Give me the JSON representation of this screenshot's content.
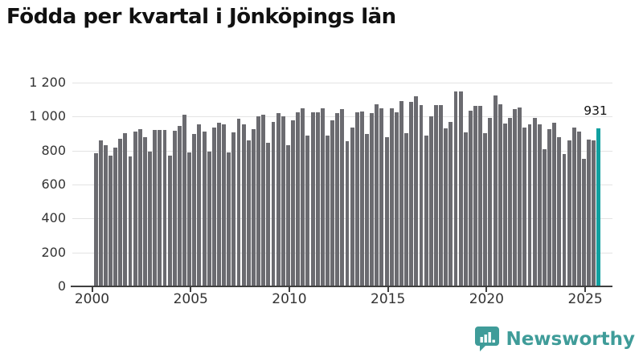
{
  "page": {
    "background": "#ffffff"
  },
  "header": {
    "title": "Födda per kvartal i Jönköpings län"
  },
  "branding": {
    "name": "Newsworthy",
    "color": "#3f9c99",
    "icon": "bar-chart-speech-bubble-icon"
  },
  "chart_data": {
    "type": "bar",
    "title": "Födda per kvartal i Jönköpings län",
    "xlabel": "",
    "ylabel": "",
    "ylim": [
      0,
      1200
    ],
    "grid": true,
    "legend": "none",
    "bar_color": "#6b6b70",
    "highlight_color": "#10a0a0",
    "highlight_index": 102,
    "annotation": {
      "text": "931",
      "target_index": 102
    },
    "y_ticks": {
      "values": [
        0,
        200,
        400,
        600,
        800,
        1000,
        1200
      ],
      "labels": [
        "0",
        "200",
        "400",
        "600",
        "800",
        "1 000",
        "1 200"
      ]
    },
    "x_ticks": {
      "labels": [
        "2000",
        "2005",
        "2010",
        "2015",
        "2020",
        "2025"
      ],
      "quarter_indices": [
        0,
        20,
        40,
        60,
        80,
        100
      ]
    },
    "categories": [
      "2000 Q1",
      "2000 Q2",
      "2000 Q3",
      "2000 Q4",
      "2001 Q1",
      "2001 Q2",
      "2001 Q3",
      "2001 Q4",
      "2002 Q1",
      "2002 Q2",
      "2002 Q3",
      "2002 Q4",
      "2003 Q1",
      "2003 Q2",
      "2003 Q3",
      "2003 Q4",
      "2004 Q1",
      "2004 Q2",
      "2004 Q3",
      "2004 Q4",
      "2005 Q1",
      "2005 Q2",
      "2005 Q3",
      "2005 Q4",
      "2006 Q1",
      "2006 Q2",
      "2006 Q3",
      "2006 Q4",
      "2007 Q1",
      "2007 Q2",
      "2007 Q3",
      "2007 Q4",
      "2008 Q1",
      "2008 Q2",
      "2008 Q3",
      "2008 Q4",
      "2009 Q1",
      "2009 Q2",
      "2009 Q3",
      "2009 Q4",
      "2010 Q1",
      "2010 Q2",
      "2010 Q3",
      "2010 Q4",
      "2011 Q1",
      "2011 Q2",
      "2011 Q3",
      "2011 Q4",
      "2012 Q1",
      "2012 Q2",
      "2012 Q3",
      "2012 Q4",
      "2013 Q1",
      "2013 Q2",
      "2013 Q3",
      "2013 Q4",
      "2014 Q1",
      "2014 Q2",
      "2014 Q3",
      "2014 Q4",
      "2015 Q1",
      "2015 Q2",
      "2015 Q3",
      "2015 Q4",
      "2016 Q1",
      "2016 Q2",
      "2016 Q3",
      "2016 Q4",
      "2017 Q1",
      "2017 Q2",
      "2017 Q3",
      "2017 Q4",
      "2018 Q1",
      "2018 Q2",
      "2018 Q3",
      "2018 Q4",
      "2019 Q1",
      "2019 Q2",
      "2019 Q3",
      "2019 Q4",
      "2020 Q1",
      "2020 Q2",
      "2020 Q3",
      "2020 Q4",
      "2021 Q1",
      "2021 Q2",
      "2021 Q3",
      "2021 Q4",
      "2022 Q1",
      "2022 Q2",
      "2022 Q3",
      "2022 Q4",
      "2023 Q1",
      "2023 Q2",
      "2023 Q3",
      "2023 Q4",
      "2024 Q1",
      "2024 Q2",
      "2024 Q3",
      "2024 Q4",
      "2025 Q1",
      "2025 Q2",
      "2025 Q3"
    ],
    "values": [
      783,
      862,
      832,
      772,
      819,
      870,
      904,
      764,
      912,
      925,
      877,
      793,
      920,
      923,
      921,
      768,
      917,
      945,
      1011,
      791,
      898,
      956,
      914,
      796,
      937,
      965,
      956,
      790,
      906,
      987,
      953,
      862,
      926,
      1003,
      1012,
      846,
      968,
      1019,
      1003,
      830,
      979,
      1027,
      1050,
      887,
      1023,
      1023,
      1050,
      887,
      976,
      1019,
      1044,
      854,
      937,
      1027,
      1030,
      898,
      1019,
      1074,
      1050,
      877,
      1047,
      1027,
      1091,
      901,
      1088,
      1118,
      1066,
      890,
      1000,
      1066,
      1066,
      929,
      968,
      1149,
      1146,
      906,
      1034,
      1063,
      1063,
      903,
      992,
      1125,
      1071,
      961,
      992,
      1044,
      1055,
      934,
      956,
      992,
      953,
      808,
      925,
      965,
      877,
      780,
      859,
      934,
      911,
      749,
      866,
      858,
      931
    ]
  }
}
